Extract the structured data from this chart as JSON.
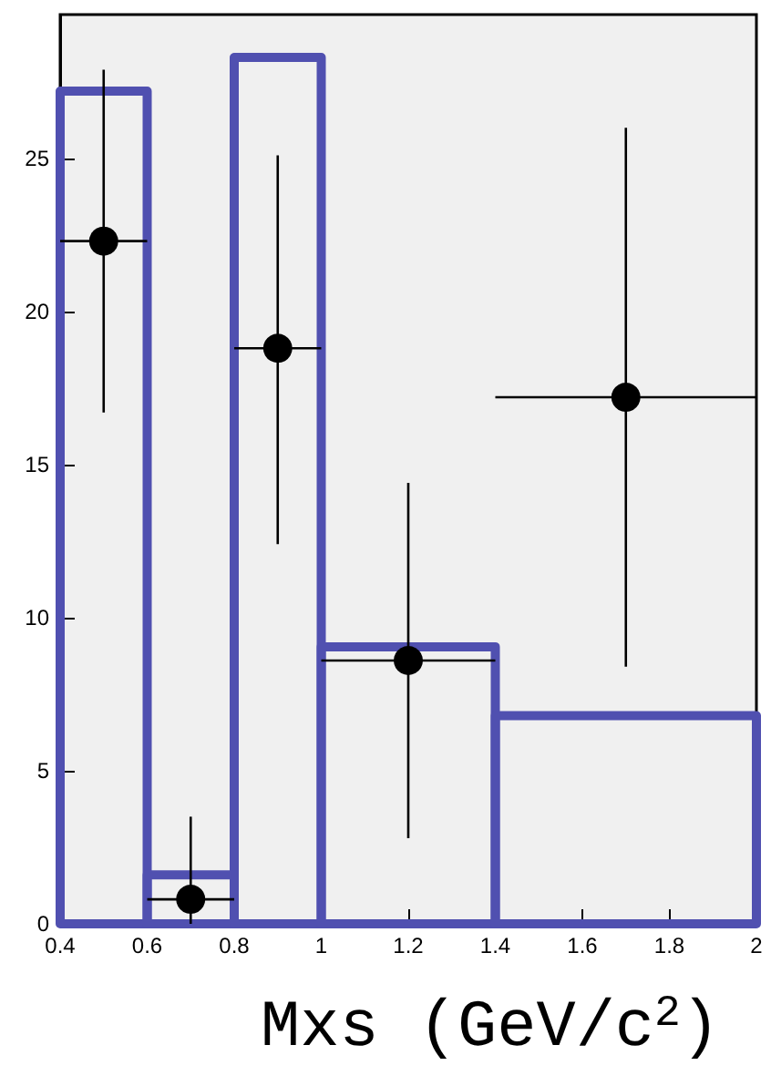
{
  "chart_data": {
    "type": "histogram",
    "xlabel": "Mxs (GeV/c$^{2}$)",
    "xlim": [
      0.4,
      2
    ],
    "xticks": [
      0.4,
      0.6,
      0.8,
      1,
      1.2,
      1.4,
      1.6,
      1.8,
      2
    ],
    "ylim": [
      0,
      29.7
    ],
    "yticks": [
      0,
      5,
      10,
      15,
      20,
      25
    ],
    "grid": false,
    "series": [
      {
        "type": "histogram",
        "color": "#5050b0",
        "bins": [
          0.4,
          0.6,
          0.8,
          1.0,
          1.4,
          2.0
        ],
        "values": [
          27.2,
          1.6,
          28.3,
          9.05,
          6.8
        ]
      },
      {
        "type": "scatter",
        "color": "#000000",
        "marker": "circle",
        "x": [
          0.5,
          0.7,
          0.9,
          1.2,
          1.7
        ],
        "values": [
          22.3,
          0.8,
          18.8,
          8.6,
          17.2
        ],
        "errors": [
          [
            16.7,
            27.9
          ],
          [
            0,
            3.5
          ],
          [
            12.4,
            25.1
          ],
          [
            2.8,
            14.4
          ],
          [
            8.4,
            26.0
          ]
        ],
        "xerrors": [
          0.1,
          0.1,
          0.1,
          0.2,
          0.3
        ]
      }
    ]
  }
}
